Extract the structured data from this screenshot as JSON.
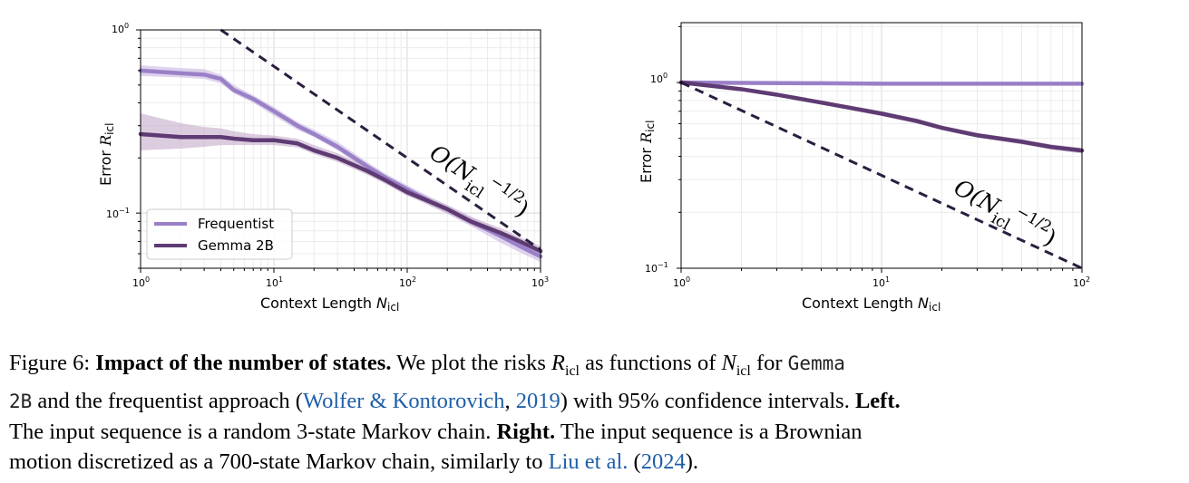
{
  "chart_data": [
    {
      "type": "line",
      "panel": "left",
      "xlabel": "Context Length N_icl",
      "ylabel": "Error R_icl",
      "xscale": "log",
      "yscale": "log",
      "xlim": [
        1,
        1000
      ],
      "ylim": [
        0.05,
        1
      ],
      "x_ticks": [
        "10^0",
        "10^1",
        "10^2",
        "10^3"
      ],
      "y_ticks": [
        "10^0",
        "10^-1"
      ],
      "grid": true,
      "legend_position": "lower-left",
      "annotation": "O(N_icl^-1/2)",
      "series": [
        {
          "name": "Frequentist",
          "color": "#9a80c7",
          "x": [
            1,
            2,
            3,
            4,
            5,
            7,
            10,
            15,
            20,
            30,
            50,
            70,
            100,
            150,
            200,
            300,
            500,
            700,
            1000
          ],
          "values": [
            0.6,
            0.58,
            0.57,
            0.54,
            0.47,
            0.42,
            0.36,
            0.3,
            0.27,
            0.23,
            0.18,
            0.155,
            0.135,
            0.115,
            0.105,
            0.09,
            0.075,
            0.066,
            0.058
          ],
          "ci_low": [
            0.56,
            0.55,
            0.54,
            0.51,
            0.45,
            0.4,
            0.34,
            0.285,
            0.26,
            0.22,
            0.172,
            0.148,
            0.128,
            0.109,
            0.099,
            0.085,
            0.069,
            0.061,
            0.054
          ],
          "ci_high": [
            0.64,
            0.62,
            0.61,
            0.57,
            0.5,
            0.44,
            0.38,
            0.315,
            0.285,
            0.245,
            0.19,
            0.163,
            0.142,
            0.122,
            0.111,
            0.096,
            0.08,
            0.071,
            0.064
          ]
        },
        {
          "name": "Gemma 2B",
          "color": "#5e3b73",
          "x": [
            1,
            2,
            3,
            4,
            5,
            7,
            10,
            15,
            20,
            30,
            50,
            70,
            100,
            150,
            200,
            300,
            500,
            700,
            1000
          ],
          "values": [
            0.27,
            0.26,
            0.26,
            0.26,
            0.255,
            0.25,
            0.25,
            0.24,
            0.22,
            0.2,
            0.17,
            0.15,
            0.13,
            0.115,
            0.105,
            0.09,
            0.078,
            0.07,
            0.062
          ],
          "ci_low": [
            0.22,
            0.225,
            0.23,
            0.235,
            0.235,
            0.235,
            0.235,
            0.228,
            0.21,
            0.19,
            0.162,
            0.143,
            0.124,
            0.11,
            0.1,
            0.086,
            0.074,
            0.066,
            0.058
          ],
          "ci_high": [
            0.35,
            0.31,
            0.295,
            0.29,
            0.28,
            0.27,
            0.265,
            0.255,
            0.235,
            0.212,
            0.18,
            0.158,
            0.137,
            0.121,
            0.11,
            0.095,
            0.083,
            0.074,
            0.066
          ]
        }
      ],
      "reference_line": {
        "x": [
          4,
          1000
        ],
        "values": [
          1.0,
          0.0632
        ]
      }
    },
    {
      "type": "line",
      "panel": "right",
      "xlabel": "Context Length N_icl",
      "ylabel": "Error R_icl",
      "xscale": "log",
      "yscale": "log",
      "xlim": [
        1,
        100
      ],
      "ylim": [
        0.1,
        2.1
      ],
      "x_ticks": [
        "10^0",
        "10^1",
        "10^2"
      ],
      "y_ticks": [
        "10^0",
        "10^-1"
      ],
      "grid": true,
      "annotation": "O(N_icl^-1/2)",
      "series": [
        {
          "name": "Frequentist",
          "color": "#9a80c7",
          "x": [
            1,
            2,
            5,
            10,
            20,
            50,
            100
          ],
          "values": [
            1.0,
            0.995,
            0.99,
            0.985,
            0.985,
            0.985,
            0.985
          ],
          "ci_low": [
            0.99,
            0.985,
            0.98,
            0.975,
            0.975,
            0.975,
            0.975
          ],
          "ci_high": [
            1.01,
            1.005,
            1.0,
            0.995,
            0.995,
            0.995,
            0.995
          ]
        },
        {
          "name": "Gemma 2B",
          "color": "#5e3b73",
          "x": [
            1,
            2,
            3,
            5,
            7,
            10,
            15,
            20,
            30,
            50,
            70,
            100
          ],
          "values": [
            1.0,
            0.92,
            0.86,
            0.78,
            0.73,
            0.68,
            0.62,
            0.57,
            0.52,
            0.48,
            0.45,
            0.43
          ],
          "ci_low": [
            0.99,
            0.9,
            0.84,
            0.76,
            0.71,
            0.66,
            0.6,
            0.555,
            0.505,
            0.465,
            0.435,
            0.415
          ],
          "ci_high": [
            1.01,
            0.94,
            0.88,
            0.8,
            0.75,
            0.7,
            0.64,
            0.585,
            0.535,
            0.495,
            0.465,
            0.445
          ]
        }
      ],
      "reference_line": {
        "x": [
          1,
          100
        ],
        "values": [
          1.0,
          0.1
        ]
      }
    }
  ],
  "labels": {
    "x_axis_prefix": "Context Length ",
    "n_symbol": "N",
    "icl_subscript": "icl",
    "y_axis_prefix": "Error ",
    "r_symbol": "R",
    "tick_base": "10",
    "tick_exp_0": "0",
    "tick_exp_1": "1",
    "tick_exp_2": "2",
    "tick_exp_3": "3",
    "tick_exp_m1": "−1",
    "annot_o": "O(",
    "annot_n": "N",
    "annot_sub": "icl",
    "annot_sup": "−1/2",
    "annot_close": ")",
    "legend_frequentist": "Frequentist",
    "legend_gemma": "Gemma 2B"
  },
  "caption": {
    "fig_label": "Figure 6: ",
    "bold_title": "Impact of the number of states.",
    "t1": " We plot the risks ",
    "r_sym": "R",
    "icl": "icl",
    "t2": " as functions of ",
    "n_sym": "N",
    "t3": " for ",
    "mono1": "Gemma",
    "mono2": "2B",
    "t4": " and the frequentist approach (",
    "cite1": "Wolfer & Kontorovich",
    "cite1_sep": ", ",
    "cite1_year": "2019",
    "t5": ") with 95% confidence intervals. ",
    "left_bold": "Left.",
    "t6": "The input sequence is a random 3-state Markov chain. ",
    "right_bold": "Right.",
    "t7": " The input sequence is a Brownian",
    "t8": "motion discretized as a 700-state Markov chain, similarly to ",
    "cite2": "Liu et al.",
    "cite2_open": " (",
    "cite2_year": "2024",
    "t9": ")."
  },
  "colors": {
    "frequentist": "#9a80c7",
    "gemma": "#5e3b73",
    "frequentist_band": "#c9b8e3",
    "gemma_band": "#c4aac9",
    "reference": "#2b1e3f",
    "link": "#1f5fa8"
  }
}
